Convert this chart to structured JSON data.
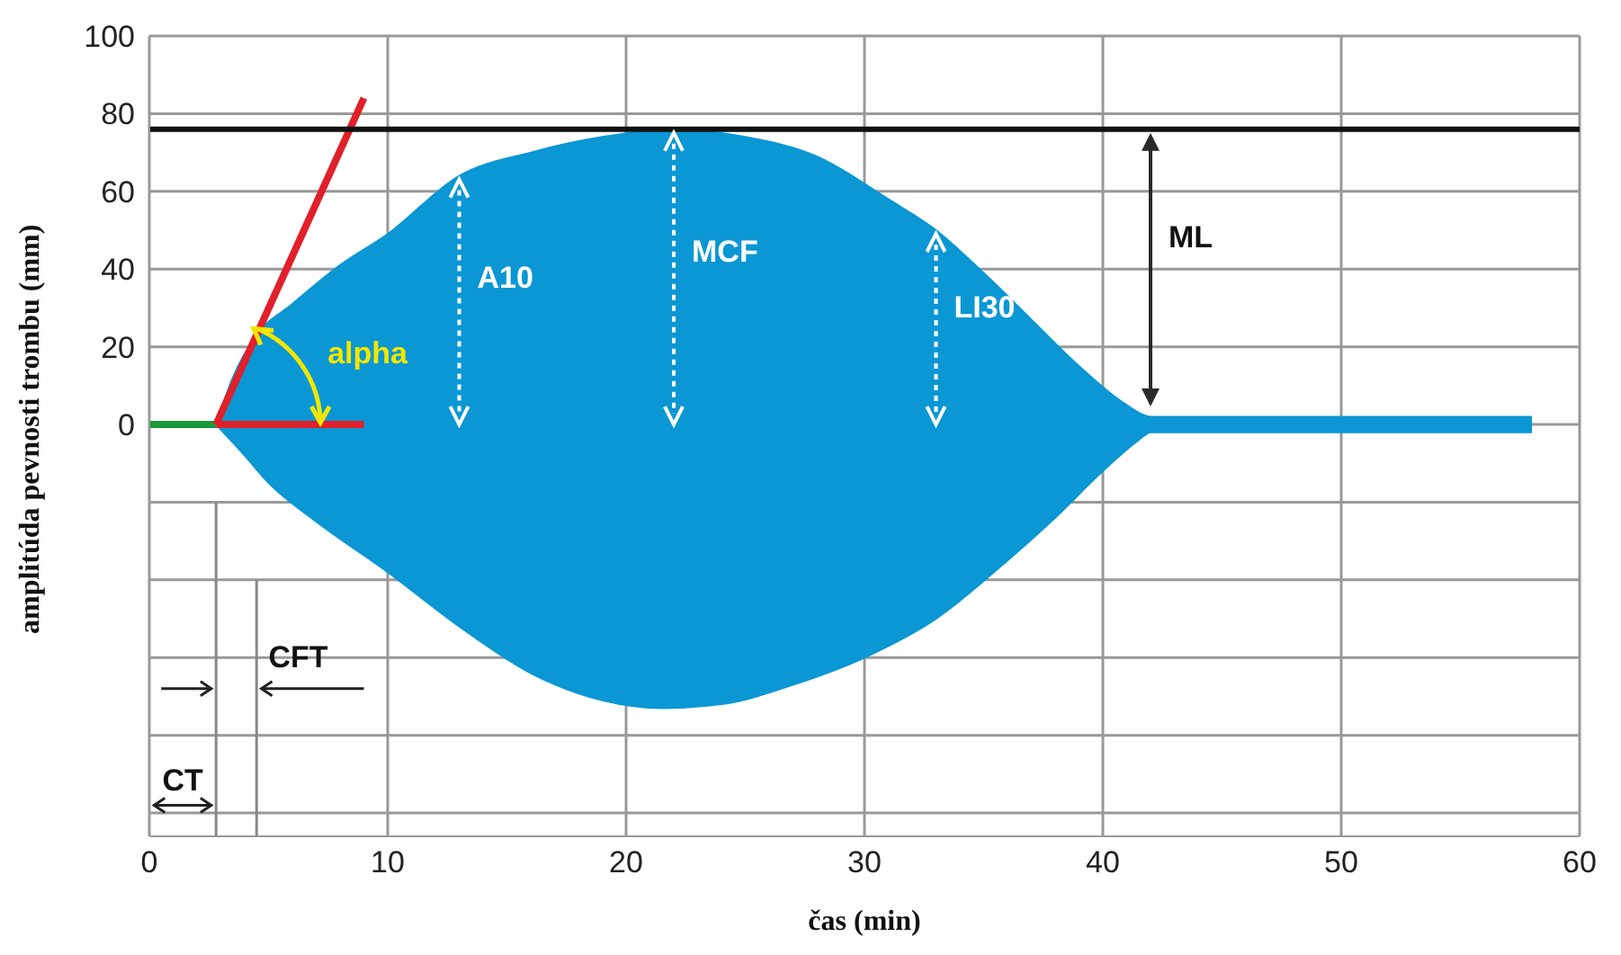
{
  "chart_data": {
    "type": "area",
    "xlabel": "čas (min)",
    "ylabel": "amplitúda pevnosti trombu (mm)",
    "xlim": [
      0,
      60
    ],
    "xticks": [
      0,
      10,
      20,
      30,
      40,
      50,
      60
    ],
    "ylim": [
      -106,
      100
    ],
    "yticks": [
      {
        "value": -100,
        "label": null
      },
      {
        "value": -80,
        "label": null
      },
      {
        "value": -60,
        "label": null
      },
      {
        "value": -40,
        "label": null
      },
      {
        "value": -20,
        "label": null
      },
      0,
      20,
      40,
      60,
      80,
      100
    ],
    "grid": true,
    "legend": false,
    "series": [
      {
        "color": "#0a97d4",
        "x": [
          2.8,
          3.5,
          4.5,
          6,
          8,
          10,
          13,
          16,
          19,
          22,
          25,
          28,
          31,
          33,
          35,
          37,
          39,
          41,
          42,
          58
        ],
        "values": [
          0,
          12,
          23,
          31,
          41,
          49,
          64,
          70,
          74,
          76,
          74,
          69,
          58,
          50,
          39,
          27,
          15,
          5,
          2,
          2
        ]
      },
      {
        "color": "#0a97d4",
        "x": [
          2.8,
          4,
          5,
          7,
          10,
          13,
          16,
          19,
          21.5,
          24,
          27,
          30,
          33,
          36,
          38,
          40,
          41.5,
          42,
          58
        ],
        "values": [
          0,
          -8,
          -15,
          -25,
          -38,
          -52,
          -64,
          -71,
          -73,
          -72,
          -67,
          -60,
          -50,
          -35,
          -24,
          -12,
          -4,
          -2,
          -2
        ]
      },
      {
        "type": "line",
        "color": "#1a9a3a",
        "x": [
          0,
          2.8
        ],
        "values": [
          0,
          0
        ]
      },
      {
        "type": "line",
        "color": "#e0202a",
        "x": [
          2.8,
          9
        ],
        "values": [
          0,
          0
        ]
      },
      {
        "type": "line",
        "color": "#e0202a",
        "x": [
          2.8,
          9
        ],
        "values": [
          0,
          84
        ]
      }
    ],
    "ref_lines": [
      {
        "axis": "y",
        "value": 76,
        "color": "#111111"
      }
    ],
    "annotations": [
      "alpha",
      {
        "text": "A10",
        "x": 13,
        "y": 64
      },
      "MCF",
      {
        "text": "LI30",
        "x": 33,
        "y": 50
      },
      "ML",
      "CT",
      "CFT"
    ]
  }
}
